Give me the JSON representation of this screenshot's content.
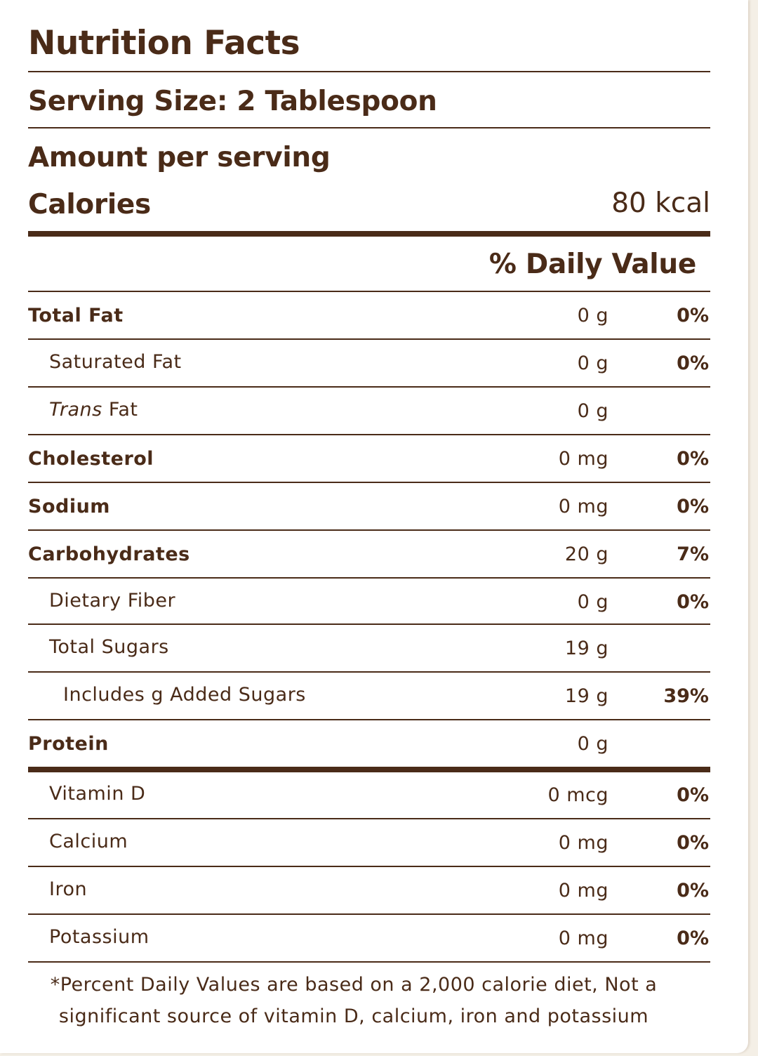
{
  "label": {
    "title": "Nutrition Facts",
    "serving_size": "Serving Size: 2 Tablespoon",
    "amount_per_serving": "Amount per serving",
    "calories_label": "Calories",
    "calories_value": "80 kcal",
    "daily_value_header": "% Daily Value"
  },
  "nutrients": [
    {
      "name": "Total Fat",
      "amount": "0 g",
      "dv": "0%"
    },
    {
      "name": "Saturated Fat",
      "amount": "0 g",
      "dv": "0%"
    },
    {
      "name_italic": "Trans",
      "name": " Fat",
      "amount": "0 g",
      "dv": ""
    },
    {
      "name": "Cholesterol",
      "amount": "0 mg",
      "dv": "0%"
    },
    {
      "name": "Sodium",
      "amount": "0 mg",
      "dv": "0%"
    },
    {
      "name": "Carbohydrates",
      "amount": "20 g",
      "dv": "7%"
    },
    {
      "name": "Dietary Fiber",
      "amount": "0 g",
      "dv": "0%"
    },
    {
      "name": "Total Sugars",
      "amount": "19 g",
      "dv": ""
    },
    {
      "name": "Includes g Added Sugars",
      "amount": "19 g",
      "dv": "39%"
    },
    {
      "name": "Protein",
      "amount": "0 g",
      "dv": ""
    }
  ],
  "vitamins": [
    {
      "name": "Vitamin D",
      "amount": "0 mcg",
      "dv": "0%"
    },
    {
      "name": "Calcium",
      "amount": "0 mg",
      "dv": "0%"
    },
    {
      "name": "Iron",
      "amount": "0 mg",
      "dv": "0%"
    },
    {
      "name": "Potassium",
      "amount": "0 mg",
      "dv": "0%"
    }
  ],
  "footnote": "*Percent Daily Values are based on a 2,000 calorie diet, Not a significant source of vitamin D, calcium, iron and potassium",
  "colors": {
    "text": "#4a2b18",
    "panel": "#ffffff",
    "background": "#f4efe6"
  }
}
